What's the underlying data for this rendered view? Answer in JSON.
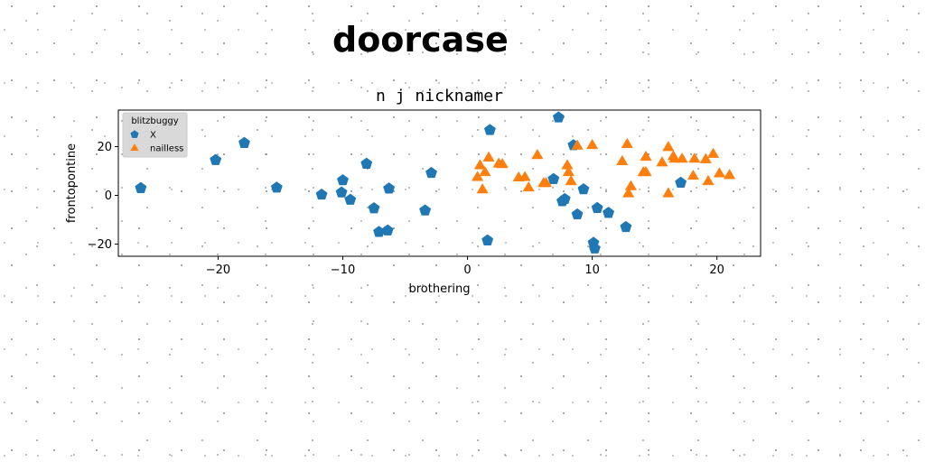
{
  "page": {
    "heading": "doorcase"
  },
  "chart_data": {
    "type": "scatter",
    "title": "n j nicknamer",
    "xlabel": "brothering",
    "ylabel": "frontopontine",
    "xlim": [
      -28,
      23.5
    ],
    "ylim": [
      -25,
      35
    ],
    "xticks": [
      -20,
      -10,
      0,
      10,
      20
    ],
    "yticks": [
      -20,
      0,
      20
    ],
    "xtick_labels": [
      "−20",
      "−10",
      "0",
      "10",
      "20"
    ],
    "ytick_labels": [
      "−20",
      "0",
      "20"
    ],
    "grid": false,
    "legend": {
      "title": "blitzbuggy",
      "position": "upper-left"
    },
    "series": [
      {
        "name": "X",
        "marker": "pentagon",
        "color": "#1f77b4",
        "points": [
          [
            -26.2,
            3.0
          ],
          [
            -20.2,
            14.5
          ],
          [
            -17.9,
            21.5
          ],
          [
            -15.3,
            3.2
          ],
          [
            -11.7,
            0.3
          ],
          [
            -10.1,
            1.2
          ],
          [
            -10.0,
            6.2
          ],
          [
            -9.4,
            -1.8
          ],
          [
            -8.1,
            13.0
          ],
          [
            -7.5,
            -5.3
          ],
          [
            -7.1,
            -15.0
          ],
          [
            -6.4,
            -14.4
          ],
          [
            -6.3,
            2.8
          ],
          [
            -3.4,
            -6.2
          ],
          [
            -2.9,
            9.2
          ],
          [
            1.6,
            -18.5
          ],
          [
            1.8,
            26.8
          ],
          [
            6.9,
            6.7
          ],
          [
            7.3,
            32.0
          ],
          [
            7.6,
            -2.4
          ],
          [
            7.8,
            -1.5
          ],
          [
            8.5,
            20.6
          ],
          [
            8.8,
            -7.8
          ],
          [
            9.3,
            2.5
          ],
          [
            10.1,
            -19.5
          ],
          [
            10.2,
            -21.8
          ],
          [
            10.4,
            -5.2
          ],
          [
            11.3,
            -7.2
          ],
          [
            12.7,
            -13.0
          ],
          [
            17.1,
            5.2
          ]
        ]
      },
      {
        "name": "nailless",
        "marker": "triangle",
        "color": "#ff7f0e",
        "points": [
          [
            0.8,
            7.5
          ],
          [
            1.0,
            12.3
          ],
          [
            1.2,
            2.4
          ],
          [
            1.4,
            9.5
          ],
          [
            1.7,
            15.5
          ],
          [
            2.5,
            13.0
          ],
          [
            2.8,
            12.8
          ],
          [
            4.1,
            7.3
          ],
          [
            4.6,
            7.5
          ],
          [
            4.9,
            3.2
          ],
          [
            5.6,
            16.5
          ],
          [
            6.3,
            5.0
          ],
          [
            8.0,
            12.3
          ],
          [
            8.1,
            9.5
          ],
          [
            8.3,
            5.8
          ],
          [
            8.8,
            20.4
          ],
          [
            10.0,
            20.6
          ],
          [
            12.4,
            14.0
          ],
          [
            12.8,
            21.0
          ],
          [
            12.9,
            0.8
          ],
          [
            13.1,
            3.7
          ],
          [
            14.1,
            9.5
          ],
          [
            14.3,
            15.8
          ],
          [
            15.6,
            13.5
          ],
          [
            16.1,
            19.8
          ],
          [
            16.5,
            16.0
          ],
          [
            16.6,
            15.0
          ],
          [
            17.2,
            15.0
          ],
          [
            18.1,
            8.0
          ],
          [
            18.2,
            15.0
          ],
          [
            19.1,
            14.8
          ],
          [
            19.3,
            5.8
          ],
          [
            19.7,
            17.0
          ],
          [
            20.2,
            9.0
          ],
          [
            21.0,
            8.3
          ],
          [
            16.1,
            0.8
          ],
          [
            6.1,
            5.0
          ],
          [
            14.3,
            9.5
          ]
        ]
      }
    ]
  }
}
